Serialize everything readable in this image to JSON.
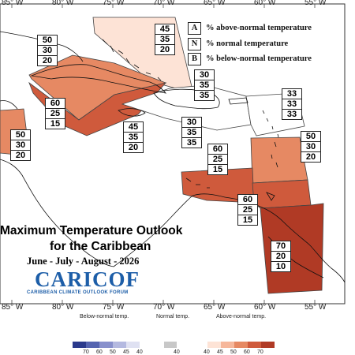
{
  "longitudes": [
    "85° W",
    "80° W",
    "75° W",
    "70° W",
    "65° W",
    "60° W",
    "55° W"
  ],
  "longitudes_bottom": [
    "85° W",
    "80° W",
    "75° W",
    "70° W",
    "65° W",
    "60° W",
    "55° W"
  ],
  "legend": {
    "above": {
      "key": "A",
      "label": "% above-normal temperature"
    },
    "normal": {
      "key": "N",
      "label": "% normal temperature"
    },
    "below": {
      "key": "B",
      "label": "% below-normal temperature"
    }
  },
  "title_line1": "Maximum Temperature Outlook",
  "title_line2": "for the Caribbean",
  "period": "June - July - August - 2026",
  "logo": "CARICOF",
  "logo_subtitle": "CARIBBEAN CLIMATE OUTLOOK FORUM",
  "probability_labels": [
    {
      "region": "western-cuba",
      "values": [
        "50",
        "30",
        "20"
      ]
    },
    {
      "region": "bahamas",
      "values": [
        "45",
        "35",
        "20"
      ]
    },
    {
      "region": "cayman-jamaica-east",
      "values": [
        "60",
        "25",
        "15"
      ]
    },
    {
      "region": "western-caribbean",
      "values": [
        "50",
        "30",
        "20"
      ]
    },
    {
      "region": "jamaica",
      "values": [
        "45",
        "35",
        "20"
      ]
    },
    {
      "region": "hispaniola-north",
      "values": [
        "30",
        "35",
        "35"
      ]
    },
    {
      "region": "hispaniola-south",
      "values": [
        "30",
        "35",
        "35"
      ]
    },
    {
      "region": "leeward-islands",
      "values": [
        "33",
        "33",
        "33"
      ]
    },
    {
      "region": "windward-islands",
      "values": [
        "50",
        "30",
        "20"
      ]
    },
    {
      "region": "abc-islands",
      "values": [
        "60",
        "25",
        "15"
      ]
    },
    {
      "region": "trinidad",
      "values": [
        "60",
        "25",
        "15"
      ]
    },
    {
      "region": "guianas",
      "values": [
        "70",
        "20",
        "10"
      ]
    }
  ],
  "colorbar": {
    "below_title": "Below-normal temp.",
    "normal_title": "Normal temp.",
    "above_title": "Above-normal temp.",
    "below_ticks": [
      "70",
      "60",
      "50",
      "45",
      "40"
    ],
    "normal_ticks": [
      "40"
    ],
    "above_ticks": [
      "40",
      "45",
      "50",
      "60",
      "70"
    ],
    "below_colors": [
      "#2b3a8c",
      "#5564b0",
      "#8890cc",
      "#b4b9e0",
      "#dfe1f2"
    ],
    "normal_color": "#c8c8c8",
    "above_colors": [
      "#fde3d6",
      "#f6b79b",
      "#e68963",
      "#cf5a3c",
      "#b03a25"
    ]
  }
}
